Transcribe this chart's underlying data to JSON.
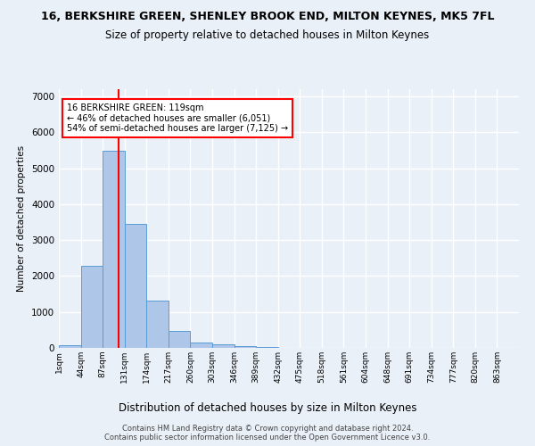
{
  "title": "16, BERKSHIRE GREEN, SHENLEY BROOK END, MILTON KEYNES, MK5 7FL",
  "subtitle": "Size of property relative to detached houses in Milton Keynes",
  "xlabel": "Distribution of detached houses by size in Milton Keynes",
  "ylabel": "Number of detached properties",
  "footer_line1": "Contains HM Land Registry data © Crown copyright and database right 2024.",
  "footer_line2": "Contains public sector information licensed under the Open Government Licence v3.0.",
  "bar_labels": [
    "1sqm",
    "44sqm",
    "87sqm",
    "131sqm",
    "174sqm",
    "217sqm",
    "260sqm",
    "303sqm",
    "346sqm",
    "389sqm",
    "432sqm",
    "475sqm",
    "518sqm",
    "561sqm",
    "604sqm",
    "648sqm",
    "691sqm",
    "734sqm",
    "777sqm",
    "820sqm",
    "863sqm"
  ],
  "bar_values": [
    80,
    2280,
    5480,
    3450,
    1310,
    460,
    160,
    90,
    55,
    30,
    0,
    0,
    0,
    0,
    0,
    0,
    0,
    0,
    0,
    0,
    0
  ],
  "bar_color": "#aec6e8",
  "bar_edgecolor": "#5b9bd5",
  "vline_color": "red",
  "annotation_text": "16 BERKSHIRE GREEN: 119sqm\n← 46% of detached houses are smaller (6,051)\n54% of semi-detached houses are larger (7,125) →",
  "ylim": [
    0,
    7200
  ],
  "yticks": [
    0,
    1000,
    2000,
    3000,
    4000,
    5000,
    6000,
    7000
  ],
  "bg_color": "#eaf0f8",
  "plot_bg_color": "#eaf0f8",
  "grid_color": "white",
  "title_fontsize": 9,
  "subtitle_fontsize": 8.5
}
